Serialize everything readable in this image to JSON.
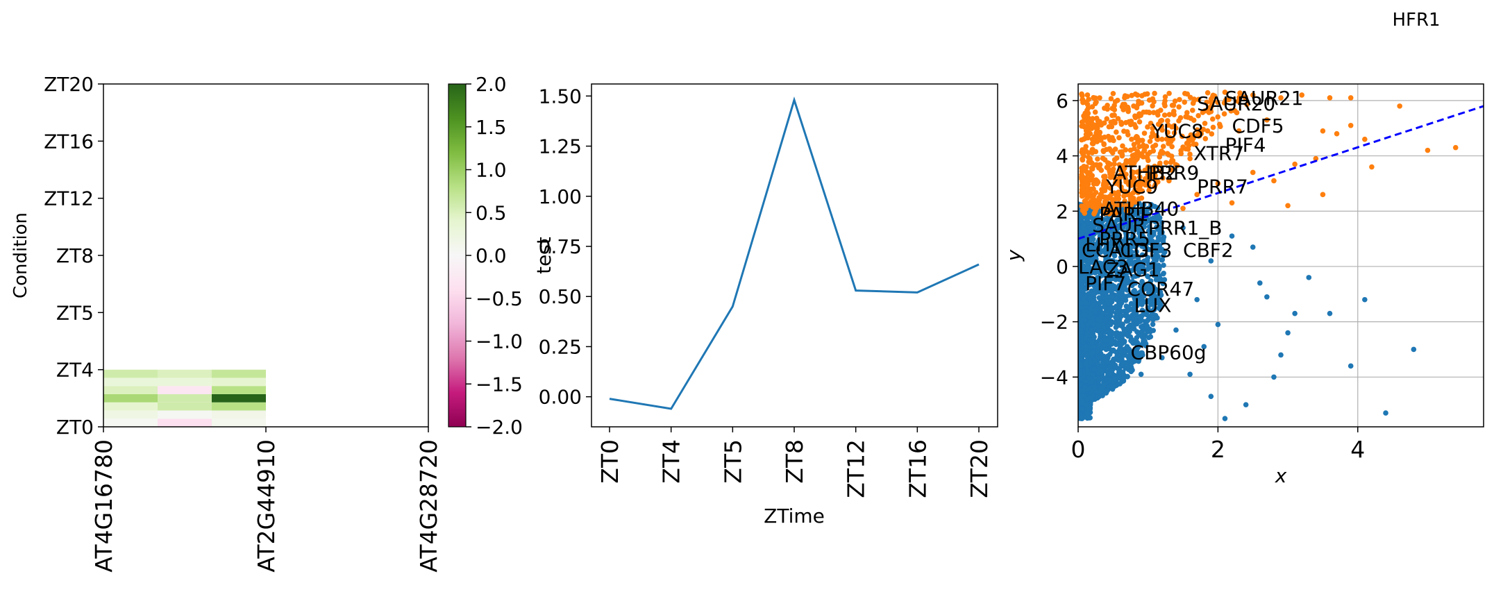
{
  "figure_title": "HFR1",
  "chart_data": [
    {
      "type": "heatmap",
      "colormap": "PiYG",
      "xlabel": "",
      "ylabel": "Condition",
      "x_ticks": [
        "AT4G16780",
        "AT2G44910",
        "AT4G28720"
      ],
      "y_ticks": [
        "ZT0",
        "ZT4",
        "ZT5",
        "ZT8",
        "ZT12",
        "ZT16",
        "ZT20"
      ],
      "colorbar": {
        "vmin": -2.0,
        "vmax": 2.0,
        "ticks": [
          "2.0",
          "1.5",
          "1.0",
          "0.5",
          "0.0",
          "−0.5",
          "−1.0",
          "−1.5",
          "−2.0"
        ]
      },
      "cells": [
        [
          0.05,
          -0.4,
          0.1
        ],
        [
          0.2,
          0.05,
          0.15
        ],
        [
          0.4,
          0.6,
          0.8
        ],
        [
          0.9,
          0.6,
          2.0
        ],
        [
          0.5,
          -0.3,
          0.8
        ],
        [
          0.3,
          0.3,
          0.4
        ],
        [
          0.6,
          0.5,
          0.7
        ]
      ]
    },
    {
      "type": "line",
      "xlabel": "ZTime",
      "ylabel": "test",
      "ylim": [
        -0.15,
        1.56
      ],
      "categories": [
        "ZT0",
        "ZT4",
        "ZT5",
        "ZT8",
        "ZT12",
        "ZT16",
        "ZT20"
      ],
      "values": [
        -0.01,
        -0.06,
        0.45,
        1.48,
        0.53,
        0.52,
        0.66
      ],
      "y_ticks": [
        "0.00",
        "0.25",
        "0.50",
        "0.75",
        "1.00",
        "1.25",
        "1.50"
      ],
      "color": "#1f77b4"
    },
    {
      "type": "scatter",
      "xlabel": "x",
      "ylabel": "y",
      "xlim": [
        0,
        5.8
      ],
      "ylim": [
        -5.8,
        6.6
      ],
      "x_ticks": [
        "0",
        "2",
        "4"
      ],
      "y_ticks": [
        "−4",
        "−2",
        "0",
        "2",
        "4",
        "6"
      ],
      "grid": true,
      "colors": {
        "upper": "#ff7f0e",
        "lower": "#1f77b4",
        "fit_line": "#0000ff"
      },
      "fit_line": {
        "x": [
          0,
          5.8
        ],
        "y": [
          1.0,
          5.8
        ],
        "style": "dashed"
      },
      "series": [
        {
          "points": [
            [
              2.1,
              6.3
            ],
            [
              2.5,
              6.2
            ],
            [
              2.9,
              6.1
            ],
            [
              3.2,
              6.2
            ],
            [
              3.6,
              6.1
            ],
            [
              3.9,
              6.1
            ],
            [
              4.6,
              5.8
            ],
            [
              5.0,
              4.2
            ],
            [
              5.4,
              4.3
            ],
            [
              4.1,
              4.6
            ],
            [
              4.2,
              3.6
            ],
            [
              3.9,
              5.1
            ],
            [
              3.5,
              4.9
            ],
            [
              3.7,
              4.8
            ],
            [
              3.4,
              3.9
            ],
            [
              3.1,
              3.7
            ],
            [
              3.0,
              2.2
            ],
            [
              3.5,
              2.6
            ],
            [
              2.8,
              3.1
            ],
            [
              2.5,
              3.4
            ],
            [
              2.3,
              4.9
            ],
            [
              2.7,
              5.3
            ],
            [
              1.9,
              5.6
            ],
            [
              1.4,
              5.0
            ],
            [
              1.2,
              4.6
            ],
            [
              1.6,
              3.9
            ],
            [
              1.0,
              3.6
            ],
            [
              0.9,
              3.0
            ],
            [
              0.7,
              2.6
            ],
            [
              0.5,
              2.3
            ],
            [
              0.6,
              3.3
            ],
            [
              1.3,
              3.1
            ],
            [
              1.7,
              2.6
            ],
            [
              2.0,
              3.0
            ],
            [
              2.2,
              2.3
            ],
            [
              1.5,
              2.1
            ]
          ]
        },
        {
          "points": [
            [
              4.8,
              -3.0
            ],
            [
              4.4,
              -5.3
            ],
            [
              4.1,
              -1.2
            ],
            [
              3.9,
              -3.6
            ],
            [
              3.6,
              -1.7
            ],
            [
              3.1,
              -1.7
            ],
            [
              3.0,
              -2.4
            ],
            [
              2.9,
              -3.2
            ],
            [
              2.8,
              -4.0
            ],
            [
              2.4,
              -5.0
            ],
            [
              2.1,
              -5.5
            ],
            [
              1.9,
              -4.7
            ],
            [
              1.6,
              -3.9
            ],
            [
              2.6,
              -0.6
            ],
            [
              2.5,
              0.7
            ],
            [
              2.2,
              1.1
            ],
            [
              1.9,
              0.2
            ],
            [
              1.7,
              -1.2
            ],
            [
              1.4,
              -2.3
            ],
            [
              1.2,
              -3.3
            ],
            [
              0.9,
              -3.9
            ],
            [
              0.7,
              -2.9
            ],
            [
              0.6,
              -1.4
            ],
            [
              0.5,
              0.2
            ],
            [
              0.4,
              1.2
            ],
            [
              0.3,
              -0.8
            ],
            [
              1.1,
              0.6
            ],
            [
              1.5,
              1.4
            ],
            [
              2.0,
              -2.1
            ],
            [
              1.8,
              -2.9
            ],
            [
              3.3,
              -0.4
            ],
            [
              2.7,
              -1.1
            ]
          ]
        }
      ],
      "labels": [
        {
          "text": "SAUR21",
          "x": 2.1,
          "y": 6.1
        },
        {
          "text": "SAUR20",
          "x": 1.7,
          "y": 5.9
        },
        {
          "text": "CDF5",
          "x": 2.2,
          "y": 5.1
        },
        {
          "text": "YUC8",
          "x": 1.05,
          "y": 4.9
        },
        {
          "text": "PIF4",
          "x": 2.1,
          "y": 4.4
        },
        {
          "text": "XTR7",
          "x": 1.65,
          "y": 4.1
        },
        {
          "text": "ATHB2",
          "x": 0.5,
          "y": 3.4
        },
        {
          "text": "PRR9",
          "x": 1.0,
          "y": 3.4
        },
        {
          "text": "YUC9",
          "x": 0.4,
          "y": 2.9
        },
        {
          "text": "PRR7",
          "x": 1.7,
          "y": 2.9
        },
        {
          "text": "ATHB40",
          "x": 0.35,
          "y": 2.1
        },
        {
          "text": "PAR1",
          "x": 0.3,
          "y": 1.9
        },
        {
          "text": "SAUR",
          "x": 0.2,
          "y": 1.5
        },
        {
          "text": "PRR1_B",
          "x": 1.0,
          "y": 1.4
        },
        {
          "text": "CBF2",
          "x": 1.5,
          "y": 0.6
        },
        {
          "text": "GI",
          "x": 0.8,
          "y": 0.6
        },
        {
          "text": "CCA1",
          "x": 0.05,
          "y": 0.6
        },
        {
          "text": "PRR5",
          "x": 0.3,
          "y": 1.0
        },
        {
          "text": "LHY",
          "x": 0.1,
          "y": 0.8
        },
        {
          "text": "CDF3",
          "x": 0.6,
          "y": 0.6
        },
        {
          "text": "LAC3",
          "x": 0.0,
          "y": 0.0
        },
        {
          "text": "ZAG1",
          "x": 0.4,
          "y": -0.1
        },
        {
          "text": "PIF7",
          "x": 0.1,
          "y": -0.6
        },
        {
          "text": "COR47",
          "x": 0.7,
          "y": -0.8
        },
        {
          "text": "LUX",
          "x": 0.8,
          "y": -1.4
        },
        {
          "text": "CBP60g",
          "x": 0.75,
          "y": -3.1
        }
      ]
    }
  ]
}
